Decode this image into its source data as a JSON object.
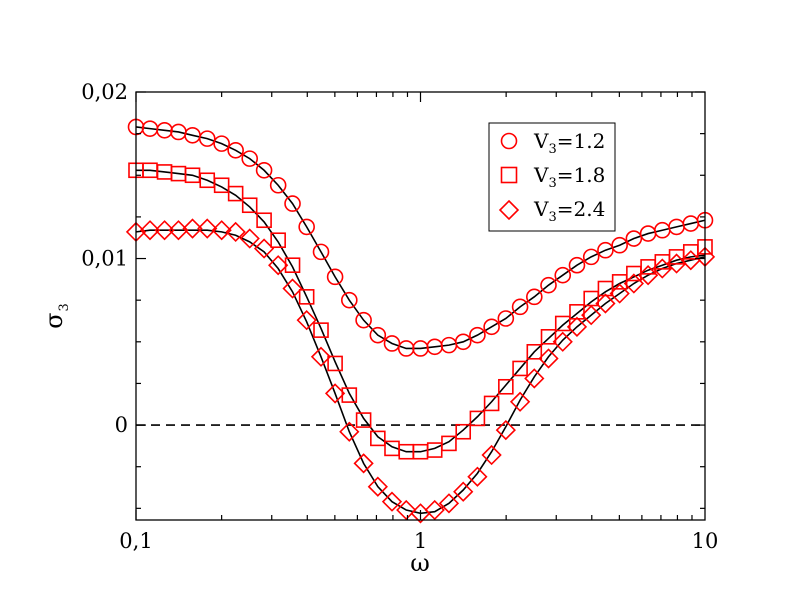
{
  "chart_data": {
    "type": "scatter",
    "title": "",
    "xlabel": "ω",
    "ylabel": "σ",
    "ylabel_subscript": "3",
    "xscale": "log",
    "xlim": [
      0.1,
      10
    ],
    "ylim": [
      -0.0057,
      0.02
    ],
    "x_tick_labels": [
      {
        "value": 0.1,
        "label": "0,1"
      },
      {
        "value": 1,
        "label": "1"
      },
      {
        "value": 10,
        "label": "10"
      }
    ],
    "y_tick_labels": [
      {
        "value": 0,
        "label": "0"
      },
      {
        "value": 0.01,
        "label": "0,01"
      },
      {
        "value": 0.02,
        "label": "0,02"
      }
    ],
    "reference_line": {
      "y": 0,
      "style": "dashed",
      "color": "#000000"
    },
    "legend": {
      "position": "top-right",
      "entries": [
        {
          "prefix": "V",
          "subscript": "3",
          "suffix": "=1.2",
          "marker": "circle"
        },
        {
          "prefix": "V",
          "subscript": "3",
          "suffix": "=1.8",
          "marker": "square"
        },
        {
          "prefix": "V",
          "subscript": "3",
          "suffix": "=2.4",
          "marker": "diamond"
        }
      ]
    },
    "x": [
      0.1,
      0.112,
      0.126,
      0.141,
      0.158,
      0.178,
      0.2,
      0.224,
      0.251,
      0.282,
      0.316,
      0.355,
      0.398,
      0.447,
      0.501,
      0.562,
      0.631,
      0.708,
      0.794,
      0.891,
      1.0,
      1.122,
      1.259,
      1.413,
      1.585,
      1.778,
      1.995,
      2.239,
      2.512,
      2.818,
      3.162,
      3.548,
      3.981,
      4.467,
      5.012,
      5.623,
      6.31,
      7.079,
      7.943,
      8.913,
      10.0
    ],
    "series": [
      {
        "name": "V3=1.2",
        "marker": "circle",
        "color": "#ff0000",
        "values": [
          0.0179,
          0.0178,
          0.0177,
          0.0176,
          0.0174,
          0.0172,
          0.0169,
          0.0165,
          0.016,
          0.0153,
          0.0144,
          0.0133,
          0.0119,
          0.0104,
          0.0089,
          0.0075,
          0.0063,
          0.0054,
          0.0049,
          0.0046,
          0.0046,
          0.0047,
          0.0048,
          0.005,
          0.0054,
          0.0059,
          0.0064,
          0.0071,
          0.0077,
          0.0084,
          0.009,
          0.0096,
          0.0101,
          0.0105,
          0.0108,
          0.0112,
          0.0115,
          0.0117,
          0.0119,
          0.0121,
          0.0123
        ]
      },
      {
        "name": "V3=1.8",
        "marker": "square",
        "color": "#ff0000",
        "values": [
          0.0153,
          0.0153,
          0.0152,
          0.0151,
          0.015,
          0.0147,
          0.0144,
          0.0139,
          0.0132,
          0.0123,
          0.0111,
          0.0096,
          0.0077,
          0.0057,
          0.0037,
          0.0018,
          0.0003,
          -0.0008,
          -0.0014,
          -0.0016,
          -0.0016,
          -0.0015,
          -0.0011,
          -0.0004,
          0.0004,
          0.0013,
          0.0023,
          0.0034,
          0.0044,
          0.0053,
          0.0061,
          0.0068,
          0.0076,
          0.0082,
          0.0086,
          0.0091,
          0.0095,
          0.0098,
          0.0101,
          0.0104,
          0.0107
        ]
      },
      {
        "name": "V3=2.4",
        "marker": "diamond",
        "color": "#ff0000",
        "values": [
          0.0116,
          0.0117,
          0.0117,
          0.0117,
          0.0118,
          0.0118,
          0.0117,
          0.0116,
          0.0112,
          0.0106,
          0.0096,
          0.0082,
          0.0063,
          0.0041,
          0.0019,
          -0.0004,
          -0.0023,
          -0.0037,
          -0.0046,
          -0.0051,
          -0.0053,
          -0.0051,
          -0.0047,
          -0.004,
          -0.0031,
          -0.0018,
          -0.0003,
          0.0014,
          0.0028,
          0.004,
          0.005,
          0.0059,
          0.0066,
          0.0073,
          0.0079,
          0.0085,
          0.009,
          0.0094,
          0.0097,
          0.0099,
          0.0101
        ]
      }
    ],
    "fit_curves": [
      {
        "name": "fit V3=1.2",
        "color": "#000000",
        "style": "solid",
        "values": [
          0.0179,
          0.0178,
          0.0177,
          0.0176,
          0.0174,
          0.0172,
          0.0169,
          0.0165,
          0.016,
          0.0153,
          0.0144,
          0.0133,
          0.0119,
          0.0104,
          0.0089,
          0.0075,
          0.0063,
          0.0054,
          0.0049,
          0.0046,
          0.0046,
          0.0047,
          0.0048,
          0.005,
          0.0054,
          0.0059,
          0.0064,
          0.0071,
          0.0077,
          0.0084,
          0.009,
          0.0096,
          0.0101,
          0.0105,
          0.0108,
          0.0112,
          0.0115,
          0.0117,
          0.0119,
          0.0121,
          0.0123
        ]
      },
      {
        "name": "fit V3=1.8",
        "color": "#000000",
        "style": "solid",
        "values": [
          0.0153,
          0.0153,
          0.0152,
          0.0151,
          0.015,
          0.0147,
          0.0143,
          0.0138,
          0.0131,
          0.0122,
          0.011,
          0.0095,
          0.0077,
          0.0058,
          0.0038,
          0.0019,
          0.0004,
          -0.0007,
          -0.0013,
          -0.0016,
          -0.0016,
          -0.0014,
          -0.001,
          -0.0003,
          0.0005,
          0.0014,
          0.0024,
          0.0034,
          0.0044,
          0.0052,
          0.006,
          0.0067,
          0.0074,
          0.008,
          0.0085,
          0.0089,
          0.0093,
          0.0096,
          0.0099,
          0.0101,
          0.0102
        ]
      },
      {
        "name": "fit V3=2.4",
        "color": "#000000",
        "style": "solid",
        "values": [
          0.0116,
          0.0117,
          0.0117,
          0.0117,
          0.0117,
          0.0117,
          0.0116,
          0.0114,
          0.011,
          0.0104,
          0.0094,
          0.008,
          0.0062,
          0.0041,
          0.0019,
          -0.0004,
          -0.0023,
          -0.0037,
          -0.0046,
          -0.0051,
          -0.0053,
          -0.0052,
          -0.0047,
          -0.0039,
          -0.0029,
          -0.0016,
          -0.0001,
          0.0015,
          0.0029,
          0.0041,
          0.0051,
          0.0059,
          0.0066,
          0.0073,
          0.0079,
          0.0085,
          0.009,
          0.0094,
          0.0097,
          0.0099,
          0.0101
        ]
      }
    ]
  }
}
